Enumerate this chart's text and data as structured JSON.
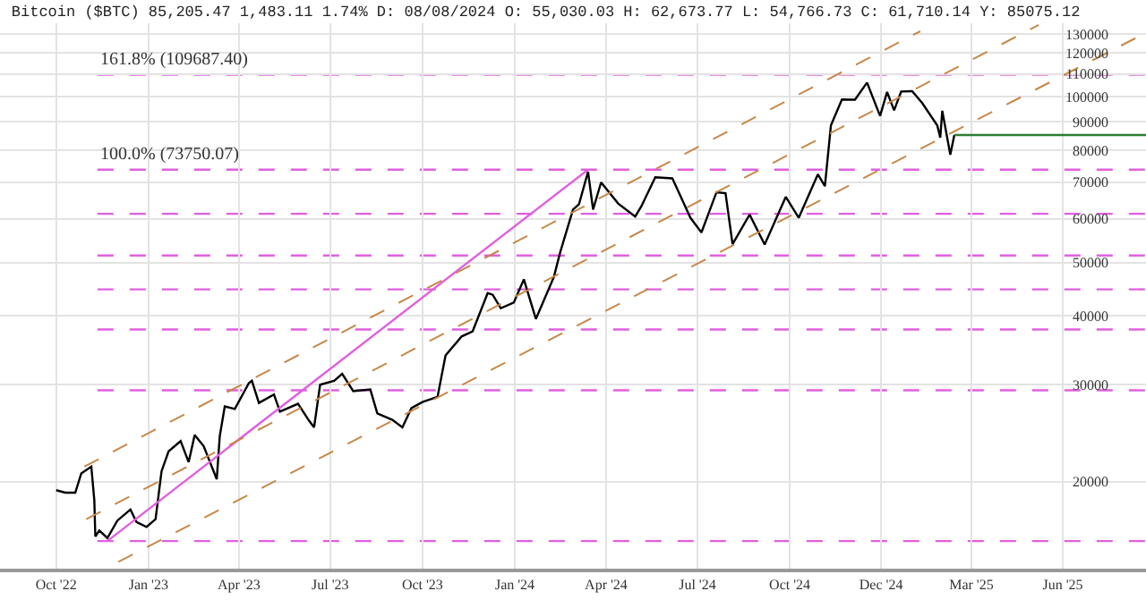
{
  "chart_data": {
    "type": "line",
    "title": "Bitcoin ($BTC) 85,205.47 1,483.11 1.74% D: 08/08/2024 O: 55,030.03 H: 62,673.77 L: 54,766.73 C: 61,710.14 Y: 85075.12",
    "log": "y",
    "grid": true,
    "marker": "none",
    "xlim": [
      "2022-08-06",
      "2025-09-21"
    ],
    "ylim": [
      13900,
      136000
    ],
    "xticks": [
      {
        "value": "2022-10-01",
        "label": "Oct '22"
      },
      {
        "value": "2023-01-01",
        "label": "Jan '23"
      },
      {
        "value": "2023-04-01",
        "label": "Apr '23"
      },
      {
        "value": "2023-07-01",
        "label": "Jul '23"
      },
      {
        "value": "2023-10-01",
        "label": "Oct '23"
      },
      {
        "value": "2024-01-01",
        "label": "Jan '24"
      },
      {
        "value": "2024-04-01",
        "label": "Apr '24"
      },
      {
        "value": "2024-07-01",
        "label": "Jul '24"
      },
      {
        "value": "2024-10-01",
        "label": "Oct '24"
      },
      {
        "value": "2024-12-31",
        "label": "Dec '24"
      },
      {
        "value": "2025-03-31",
        "label": "Mar '25"
      },
      {
        "value": "2025-06-30",
        "label": "Jun '25"
      }
    ],
    "yticks": [
      20000,
      30000,
      40000,
      50000,
      60000,
      70000,
      80000,
      90000,
      100000,
      110000,
      120000,
      130000
    ],
    "series": [
      {
        "color": "#000000",
        "line_style": "solid",
        "x": [
          "2022-10-01",
          "2022-10-10",
          "2022-10-20",
          "2022-10-26",
          "2022-11-05",
          "2022-11-08",
          "2022-11-09",
          "2022-11-13",
          "2022-11-21",
          "2022-12-01",
          "2022-12-14",
          "2022-12-20",
          "2022-12-30",
          "2023-01-08",
          "2023-01-14",
          "2023-01-21",
          "2023-02-02",
          "2023-02-10",
          "2023-02-16",
          "2023-02-25",
          "2023-03-10",
          "2023-03-13",
          "2023-03-18",
          "2023-03-28",
          "2023-04-11",
          "2023-04-14",
          "2023-04-21",
          "2023-05-06",
          "2023-05-12",
          "2023-05-30",
          "2023-06-10",
          "2023-06-15",
          "2023-06-21",
          "2023-07-05",
          "2023-07-13",
          "2023-07-24",
          "2023-08-10",
          "2023-08-17",
          "2023-09-01",
          "2023-09-11",
          "2023-09-20",
          "2023-10-01",
          "2023-10-16",
          "2023-10-24",
          "2023-11-09",
          "2023-11-20",
          "2023-12-05",
          "2023-12-10",
          "2023-12-18",
          "2023-12-31",
          "2024-01-10",
          "2024-01-22",
          "2024-02-09",
          "2024-02-15",
          "2024-02-28",
          "2024-03-05",
          "2024-03-14",
          "2024-03-19",
          "2024-03-27",
          "2024-04-13",
          "2024-04-30",
          "2024-05-06",
          "2024-05-20",
          "2024-06-06",
          "2024-06-24",
          "2024-07-05",
          "2024-07-20",
          "2024-07-29",
          "2024-08-05",
          "2024-08-22",
          "2024-09-06",
          "2024-09-27",
          "2024-10-10",
          "2024-10-29",
          "2024-11-05",
          "2024-11-11",
          "2024-11-22",
          "2024-12-05",
          "2024-12-17",
          "2024-12-30",
          "2025-01-06",
          "2025-01-13",
          "2025-01-20",
          "2025-01-31",
          "2025-02-10",
          "2025-02-25",
          "2025-02-28",
          "2025-03-02",
          "2025-03-10",
          "2025-03-14"
        ],
        "values": [
          19300,
          19100,
          19100,
          20700,
          21300,
          18500,
          15900,
          16300,
          15800,
          17000,
          17800,
          16900,
          16550,
          17100,
          20900,
          22700,
          23700,
          21700,
          24300,
          23200,
          20200,
          24200,
          27400,
          27100,
          30200,
          30500,
          27800,
          28800,
          26800,
          27700,
          25800,
          25100,
          30000,
          30500,
          31400,
          29200,
          29400,
          26600,
          25900,
          25100,
          27200,
          27900,
          28500,
          33900,
          36700,
          37500,
          44000,
          43700,
          41300,
          42300,
          46600,
          39500,
          47100,
          52000,
          62400,
          63800,
          73100,
          62400,
          69900,
          64000,
          60600,
          63200,
          71400,
          71100,
          60300,
          56700,
          67100,
          66800,
          54000,
          61100,
          53900,
          65800,
          60300,
          72300,
          68800,
          88700,
          98900,
          98800,
          106100,
          92300,
          102000,
          94500,
          102200,
          102400,
          97400,
          88700,
          84300,
          94300,
          78500,
          85205.47
        ]
      },
      {
        "color": "#2e7d32",
        "line_style": "solid",
        "x": [
          "2025-03-14",
          "2025-09-21"
        ],
        "values": [
          85205.47,
          85205.47
        ]
      },
      {
        "color": "#e060e0",
        "line_style": "solid",
        "x": [
          "2022-11-21",
          "2024-03-14"
        ],
        "values": [
          15600,
          73750
        ]
      },
      {
        "color": "#c8874a",
        "line_style": "dashed",
        "x": [
          "2022-10-29",
          "2025-02-08"
        ],
        "values": [
          21300,
          131500
        ]
      },
      {
        "color": "#c8874a",
        "line_style": "dashed",
        "x": [
          "2022-10-31",
          "2025-06-06"
        ],
        "values": [
          17100,
          135000
        ]
      },
      {
        "color": "#c8874a",
        "line_style": "dashed",
        "x": [
          "2022-12-02",
          "2025-09-21"
        ],
        "values": [
          14300,
          130700
        ]
      }
    ],
    "ref_lines": [
      {
        "axis": "y",
        "value": 109687.4,
        "label": "161.8% (109687.40)",
        "color": "#e060e0",
        "line_style": "dashed"
      },
      {
        "axis": "y",
        "value": 73750.07,
        "label": "100.0% (73750.07)",
        "color": "#e060e0",
        "line_style": "dashed"
      },
      {
        "axis": "y",
        "value": 61300,
        "color": "#e060e0",
        "line_style": "dashed"
      },
      {
        "axis": "y",
        "value": 51500,
        "color": "#e060e0",
        "line_style": "dashed"
      },
      {
        "axis": "y",
        "value": 44700,
        "color": "#e060e0",
        "line_style": "dashed"
      },
      {
        "axis": "y",
        "value": 37800,
        "color": "#e060e0",
        "line_style": "dashed"
      },
      {
        "axis": "y",
        "value": 29300,
        "color": "#e060e0",
        "line_style": "dashed"
      },
      {
        "axis": "y",
        "value": 15600,
        "color": "#e060e0",
        "line_style": "dashed"
      }
    ]
  }
}
